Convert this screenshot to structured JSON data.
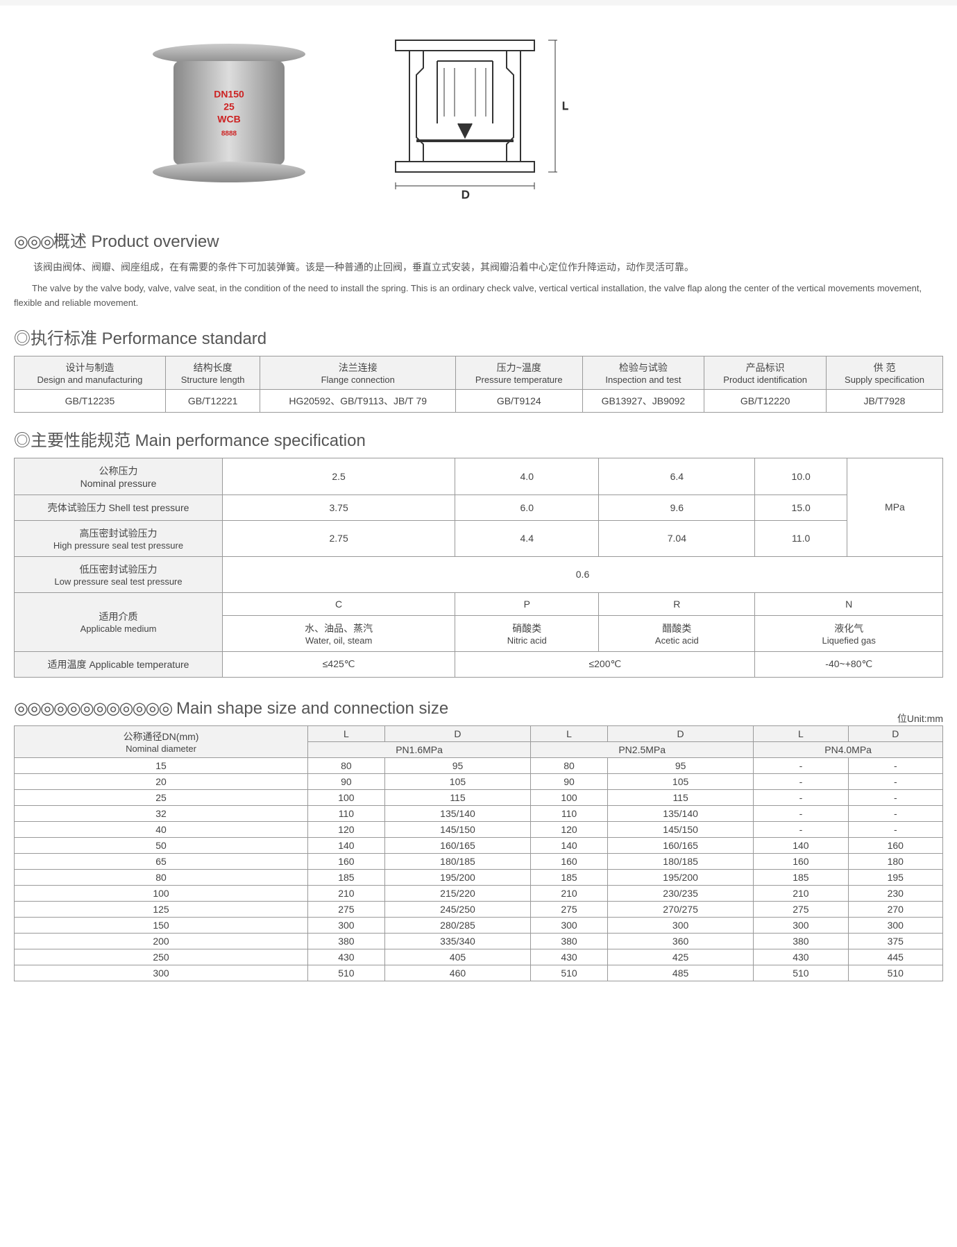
{
  "top_images": {
    "valve_text": {
      "line1": "DN150",
      "line2": "25",
      "line3": "WCB",
      "line4": "8888"
    },
    "diagram": {
      "d_label": "D",
      "l_label": "L"
    }
  },
  "overview": {
    "heading_prefix": "◎◎◎",
    "heading_cn": "概述",
    "heading_en": "Product overview",
    "para_cn": "该阀由阀体、阀瓣、阀座组成，在有需要的条件下可加装弹簧。该是一种普通的止回阀，垂直立式安装，其阀瓣沿着中心定位作升降运动，动作灵活可靠。",
    "para_en": "The valve by the valve body, valve, valve seat, in the condition of the need to install the spring. This is an ordinary check valve, vertical vertical installation, the valve flap along the center of the vertical movements movement, flexible and reliable movement."
  },
  "performance": {
    "heading_prefix": "◎",
    "heading_cn": "执行标准",
    "heading_en": "Performance standard",
    "headers": [
      {
        "cn": "设计与制造",
        "en": "Design and manufacturing"
      },
      {
        "cn": "结构长度",
        "en": "Structure length"
      },
      {
        "cn": "法兰连接",
        "en": "Flange connection"
      },
      {
        "cn": "压力~温度",
        "en": "Pressure temperature"
      },
      {
        "cn": "检验与试验",
        "en": "Inspection and test"
      },
      {
        "cn": "产品标识",
        "en": "Product identification"
      },
      {
        "cn": "供    范",
        "en": "Supply specification"
      }
    ],
    "values": [
      "GB/T12235",
      "GB/T12221",
      "HG20592、GB/T9113、JB/T 79",
      "GB/T9124",
      "GB13927、JB9092",
      "GB/T12220",
      "JB/T7928"
    ]
  },
  "spec": {
    "heading_prefix": "◎",
    "heading_cn": "主要性能规范",
    "heading_en": "Main performance specification",
    "row_labels": [
      {
        "cn": "公称压力",
        "en": "Nominal pressure"
      },
      {
        "cn": "壳体试验压力",
        "en": "Shell test pressure"
      },
      {
        "cn": "高压密封试验压力",
        "en": "High pressure seal test pressure"
      },
      {
        "cn": "低压密封试验压力",
        "en": "Low pressure seal test pressure"
      },
      {
        "cn": "适用介质",
        "en": "Applicable medium"
      },
      {
        "cn": "适用温度",
        "en": "Applicable temperature"
      }
    ],
    "nominal": [
      "2.5",
      "4.0",
      "6.4",
      "10.0"
    ],
    "shell": [
      "3.75",
      "6.0",
      "9.6",
      "15.0"
    ],
    "high": [
      "2.75",
      "4.4",
      "7.04",
      "11.0"
    ],
    "low": "0.6",
    "unit": "MPa",
    "medium_codes": [
      "C",
      "P",
      "R",
      "N"
    ],
    "medium_names": [
      {
        "cn": "水、油品、蒸汽",
        "en": "Water, oil, steam"
      },
      {
        "cn": "硝酸类",
        "en": "Nitric acid"
      },
      {
        "cn": "醋酸类",
        "en": "Acetic acid"
      },
      {
        "cn": "液化气",
        "en": "Liquefied gas"
      }
    ],
    "temps": [
      "≤425℃",
      "≤200℃",
      "-40~+80℃"
    ]
  },
  "size": {
    "heading_prefix": "◎◎◎◎◎◎◎◎◎◎◎◎",
    "heading_cn": "",
    "heading_en": "Main shape size and connection size",
    "unit_label": "位Unit:mm",
    "top_headers": [
      "L",
      "D",
      "L",
      "D",
      "L",
      "D"
    ],
    "pn_headers": [
      "PN1.6MPa",
      "PN2.5MPa",
      "PN4.0MPa"
    ],
    "dn_header": {
      "cn": "公称通径DN(mm)",
      "en": "Nominal diameter"
    },
    "rows": [
      {
        "dn": "15",
        "v": [
          "80",
          "95",
          "80",
          "95",
          "-",
          "-"
        ]
      },
      {
        "dn": "20",
        "v": [
          "90",
          "105",
          "90",
          "105",
          "-",
          "-"
        ]
      },
      {
        "dn": "25",
        "v": [
          "100",
          "115",
          "100",
          "115",
          "-",
          "-"
        ]
      },
      {
        "dn": "32",
        "v": [
          "110",
          "135/140",
          "110",
          "135/140",
          "-",
          "-"
        ]
      },
      {
        "dn": "40",
        "v": [
          "120",
          "145/150",
          "120",
          "145/150",
          "-",
          "-"
        ]
      },
      {
        "dn": "50",
        "v": [
          "140",
          "160/165",
          "140",
          "160/165",
          "140",
          "160"
        ]
      },
      {
        "dn": "65",
        "v": [
          "160",
          "180/185",
          "160",
          "180/185",
          "160",
          "180"
        ]
      },
      {
        "dn": "80",
        "v": [
          "185",
          "195/200",
          "185",
          "195/200",
          "185",
          "195"
        ]
      },
      {
        "dn": "100",
        "v": [
          "210",
          "215/220",
          "210",
          "230/235",
          "210",
          "230"
        ]
      },
      {
        "dn": "125",
        "v": [
          "275",
          "245/250",
          "275",
          "270/275",
          "275",
          "270"
        ]
      },
      {
        "dn": "150",
        "v": [
          "300",
          "280/285",
          "300",
          "300",
          "300",
          "300"
        ]
      },
      {
        "dn": "200",
        "v": [
          "380",
          "335/340",
          "380",
          "360",
          "380",
          "375"
        ]
      },
      {
        "dn": "250",
        "v": [
          "430",
          "405",
          "430",
          "425",
          "430",
          "445"
        ]
      },
      {
        "dn": "300",
        "v": [
          "510",
          "460",
          "510",
          "485",
          "510",
          "510"
        ]
      }
    ]
  },
  "colors": {
    "border": "#999999",
    "header_bg": "#f2f2f2",
    "text": "#444444",
    "red": "#cc2222"
  }
}
